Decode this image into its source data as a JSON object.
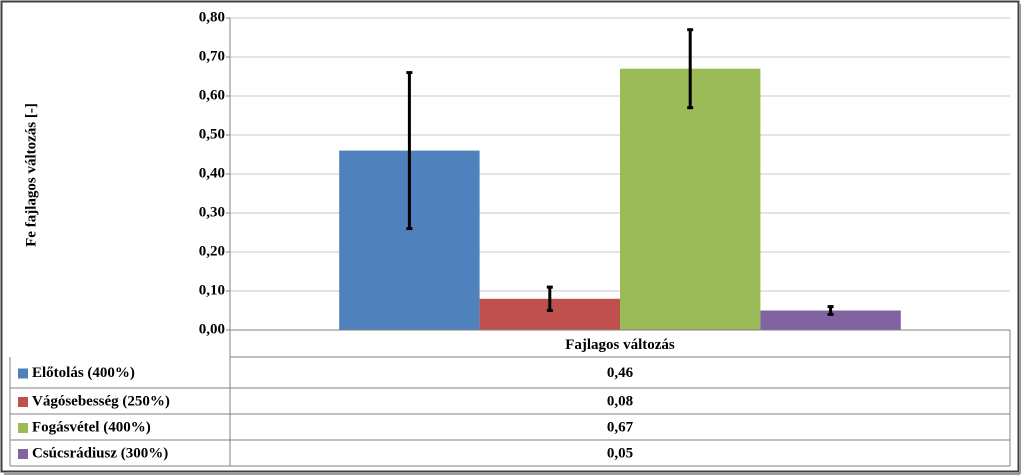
{
  "chart_data": {
    "type": "bar",
    "y_label": "Fe  fajlagos változás [-]",
    "categories": [
      "Fajlagos változás"
    ],
    "series": [
      {
        "name": "Előtolás (400%)",
        "color": "#4f81bd",
        "values": [
          0.46
        ],
        "value_labels": [
          "0,46"
        ],
        "errors": [
          0.2
        ]
      },
      {
        "name": "Vágósebesség (250%)",
        "color": "#c0504d",
        "values": [
          0.08
        ],
        "value_labels": [
          "0,08"
        ],
        "errors": [
          0.03
        ]
      },
      {
        "name": "Fogásvétel (400%)",
        "color": "#9bbb59",
        "values": [
          0.67
        ],
        "value_labels": [
          "0,67"
        ],
        "errors": [
          0.1
        ]
      },
      {
        "name": "Csúcsrádiusz (300%)",
        "color": "#8064a2",
        "values": [
          0.05
        ],
        "value_labels": [
          "0,05"
        ],
        "errors": [
          0.01
        ]
      }
    ],
    "ylim": [
      0,
      0.8
    ],
    "yticks": [
      {
        "value": 0,
        "label": "0,00"
      },
      {
        "value": 0.1,
        "label": "0,10"
      },
      {
        "value": 0.2,
        "label": "0,20"
      },
      {
        "value": 0.3,
        "label": "0,30"
      },
      {
        "value": 0.4,
        "label": "0,40"
      },
      {
        "value": 0.5,
        "label": "0,50"
      },
      {
        "value": 0.6,
        "label": "0,60"
      },
      {
        "value": 0.7,
        "label": "0,70"
      },
      {
        "value": 0.8,
        "label": "0,80"
      }
    ],
    "grid": true
  }
}
